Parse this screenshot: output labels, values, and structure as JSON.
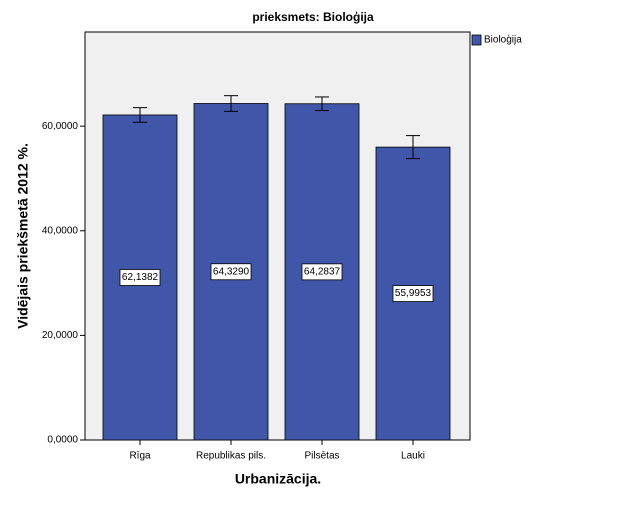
{
  "chart_data": {
    "type": "bar",
    "title": "prieksmets: Bioloģija",
    "x_label": "Urbanizācija.",
    "y_label": "Vidējais priekšmetā 2012 %.",
    "categories": [
      "Rīga",
      "Republikas pils.",
      "Pilsētas",
      "Lauki"
    ],
    "series": [
      {
        "name": "Bioloģija",
        "color": "#3f56a9",
        "values": [
          62.1382,
          64.329,
          64.2837,
          55.9953
        ],
        "value_labels": [
          "62,1382",
          "64,3290",
          "64,2837",
          "55,9953"
        ],
        "errors": [
          1.4,
          1.5,
          1.3,
          2.2
        ]
      }
    ],
    "ylim": [
      0,
      78
    ],
    "yticks": [
      {
        "value": 0,
        "label": "0,0000"
      },
      {
        "value": 20,
        "label": "20,0000"
      },
      {
        "value": 40,
        "label": "40,0000"
      },
      {
        "value": 60,
        "label": "60,0000"
      }
    ],
    "legend": "right"
  }
}
